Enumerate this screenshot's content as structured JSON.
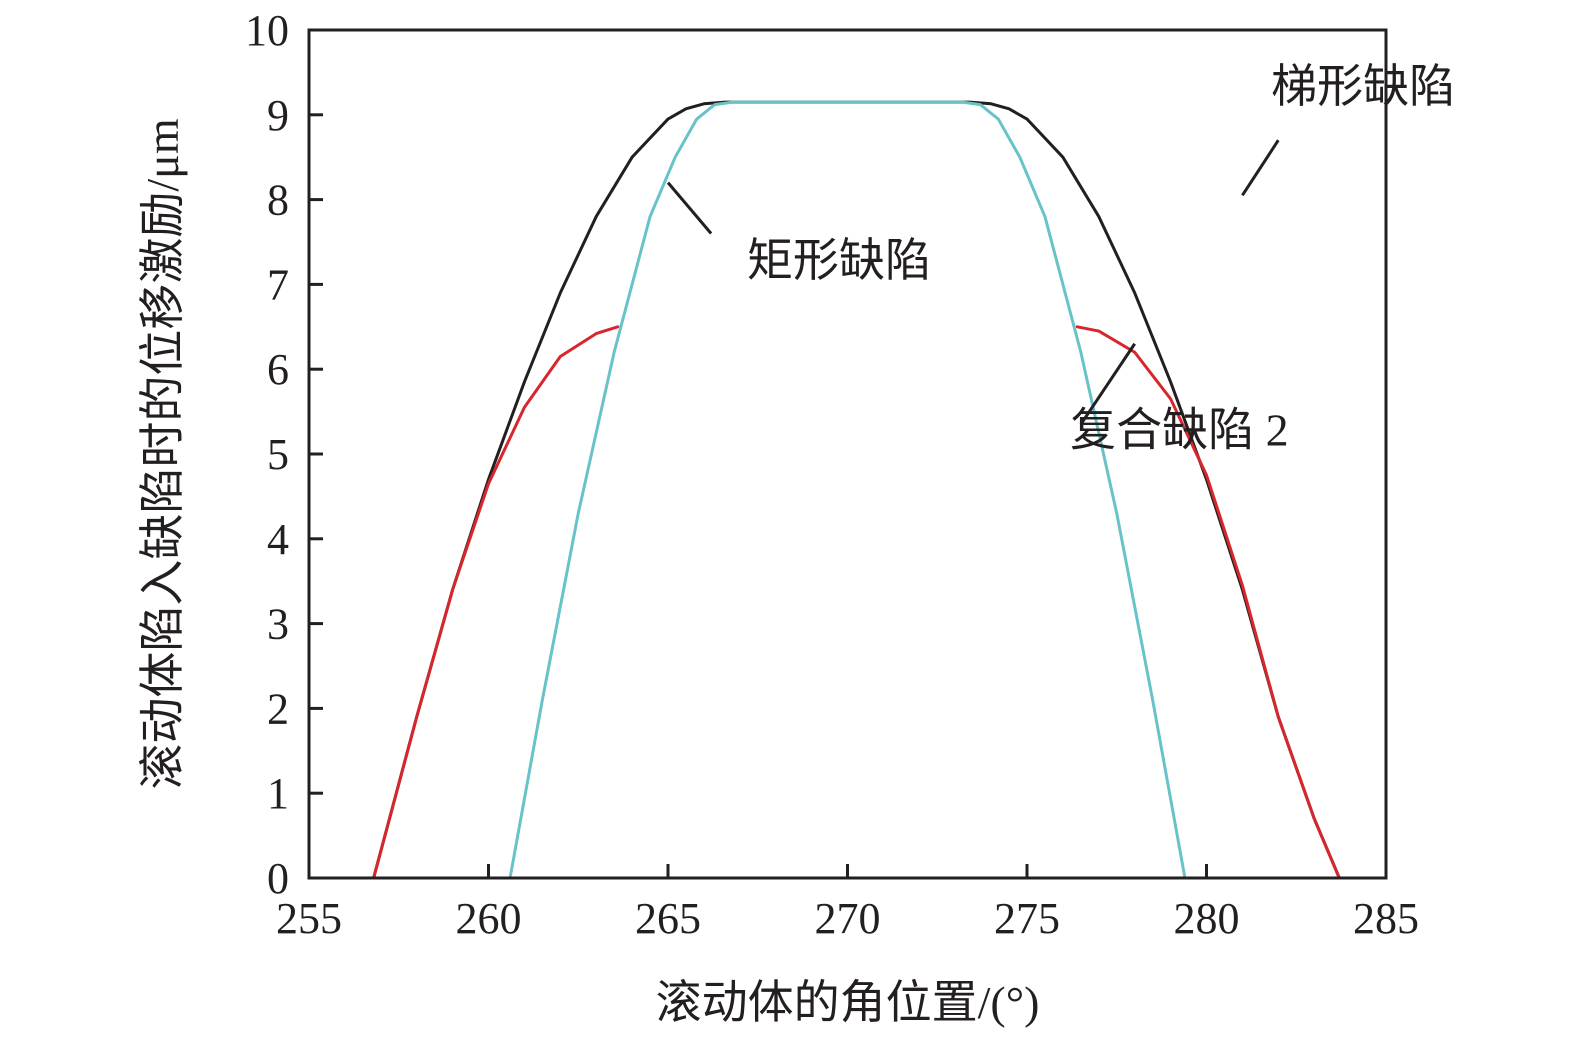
{
  "chart_data": {
    "type": "line",
    "title": "",
    "xlabel": "滚动体的角位置/(°)",
    "ylabel": "滚动体陷入缺陷时的位移激励/μm",
    "xlim": [
      255,
      285
    ],
    "ylim": [
      0,
      10
    ],
    "xticks": [
      "255",
      "260",
      "265",
      "270",
      "275",
      "280",
      "285"
    ],
    "yticks": [
      "0",
      "1",
      "2",
      "3",
      "4",
      "5",
      "6",
      "7",
      "8",
      "9",
      "10"
    ],
    "grid": false,
    "legend": "none",
    "series": [
      {
        "name": "梯形缺陷",
        "color": "#231f20",
        "x": [
          256.8,
          258,
          259,
          260,
          261,
          262,
          263,
          264,
          265,
          265.5,
          266,
          266.6,
          270,
          273.4,
          274,
          274.5,
          275,
          276,
          277,
          278,
          279,
          280,
          281,
          282,
          283,
          283.7
        ],
        "y": [
          0,
          1.9,
          3.4,
          4.7,
          5.85,
          6.9,
          7.8,
          8.5,
          8.95,
          9.07,
          9.13,
          9.15,
          9.15,
          9.15,
          9.13,
          9.07,
          8.95,
          8.5,
          7.8,
          6.9,
          5.85,
          4.7,
          3.4,
          1.9,
          0.7,
          0
        ]
      },
      {
        "name": "矩形缺陷",
        "color": "#67c3c8",
        "x": [
          260.6,
          261.5,
          262.5,
          263.5,
          264.5,
          265.2,
          265.8,
          266.3,
          266.8,
          270,
          273.2,
          273.7,
          274.2,
          274.8,
          275.5,
          276.5,
          277.5,
          278.5,
          279.4
        ],
        "y": [
          0,
          2.1,
          4.3,
          6.2,
          7.8,
          8.5,
          8.95,
          9.12,
          9.15,
          9.15,
          9.15,
          9.12,
          8.95,
          8.5,
          7.8,
          6.2,
          4.3,
          2.1,
          0
        ]
      },
      {
        "name": "复合缺陷 2",
        "color": "#d7262d",
        "x": [
          256.8,
          258,
          259,
          260,
          261,
          262,
          263,
          263.6,
          null,
          276.4,
          277,
          278,
          279,
          280,
          281,
          282,
          283,
          283.7
        ],
        "y": [
          0,
          1.9,
          3.4,
          4.65,
          5.55,
          6.15,
          6.42,
          6.5,
          null,
          6.5,
          6.45,
          6.2,
          5.65,
          4.75,
          3.45,
          1.9,
          0.7,
          0
        ]
      }
    ],
    "annotations": [
      {
        "text": "梯形缺陷",
        "x": 281.8,
        "y": 9.15,
        "point_x": 280.8,
        "point_y": 8.1
      },
      {
        "text": "矩形缺陷",
        "x": 267.2,
        "y": 7.1,
        "point_x": 265.0,
        "point_y": 8.2
      },
      {
        "text": "复合缺陷 2",
        "x": 276.2,
        "y": 5.1,
        "point_x": 278.0,
        "point_y": 6.3
      }
    ]
  }
}
